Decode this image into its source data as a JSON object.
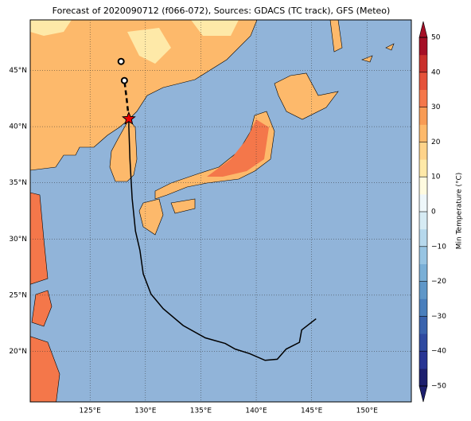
{
  "chart_data": {
    "type": "map",
    "title": "Forecast of 2020090712 (f066-072), Sources: GDACS (TC track), GFS (Meteo)",
    "xlim": [
      119.6,
      154
    ],
    "ylim": [
      15.5,
      49.5
    ],
    "xticks": [
      {
        "value": 125,
        "label": "125°E"
      },
      {
        "value": 130,
        "label": "130°E"
      },
      {
        "value": 135,
        "label": "135°E"
      },
      {
        "value": 140,
        "label": "140°E"
      },
      {
        "value": 145,
        "label": "145°E"
      },
      {
        "value": 150,
        "label": "150°E"
      }
    ],
    "yticks": [
      {
        "value": 20,
        "label": "20°N"
      },
      {
        "value": 25,
        "label": "25°N"
      },
      {
        "value": 30,
        "label": "30°N"
      },
      {
        "value": 35,
        "label": "35°N"
      },
      {
        "value": 40,
        "label": "40°N"
      },
      {
        "value": 45,
        "label": "45°N"
      }
    ],
    "grid": true,
    "track": {
      "lon": [
        145.4,
        144.1,
        143.9,
        142.7,
        141.9,
        140.8,
        139.4,
        138.1,
        137.2,
        135.4,
        133.4,
        131.6,
        130.5,
        129.8,
        129.5,
        129.1,
        128.8,
        128.6,
        128.5,
        128.5
      ],
      "lat": [
        22.9,
        21.9,
        20.8,
        20.2,
        19.3,
        19.2,
        19.8,
        20.2,
        20.7,
        21.2,
        22.3,
        23.8,
        25.1,
        26.9,
        29.0,
        30.7,
        33.6,
        37.1,
        40.0,
        40.7
      ]
    },
    "forecast": {
      "lon": [
        128.5,
        128.3,
        128.1
      ],
      "lat": [
        40.7,
        42.5,
        44.1
      ]
    },
    "forecast_points": {
      "lon": [
        128.1,
        127.8
      ],
      "lat": [
        44.1,
        45.8
      ]
    },
    "current_position": {
      "lon": 128.5,
      "lat": 40.7
    },
    "colorbar_label": "Min Temperature (°C)",
    "clim": [
      -50,
      50
    ],
    "cticks": [
      {
        "value": -50,
        "label": "−50"
      },
      {
        "value": -40,
        "label": "−40"
      },
      {
        "value": -30,
        "label": "−30"
      },
      {
        "value": -20,
        "label": "−20"
      },
      {
        "value": -10,
        "label": "−10"
      },
      0,
      10,
      20,
      30,
      40,
      50
    ],
    "colors": [
      "#1d1f6e",
      "#283593",
      "#2f4aa0",
      "#3a63ad",
      "#4a7fbc",
      "#5f97c8",
      "#7aafd6",
      "#97c4e2",
      "#b6d8ec",
      "#d6ebf4",
      "#eef7fa",
      "#fffbe0",
      "#fee9a8",
      "#fed38a",
      "#fdb96b",
      "#f89b55",
      "#f4774a",
      "#e5523a",
      "#c9302c",
      "#a50f26"
    ]
  }
}
